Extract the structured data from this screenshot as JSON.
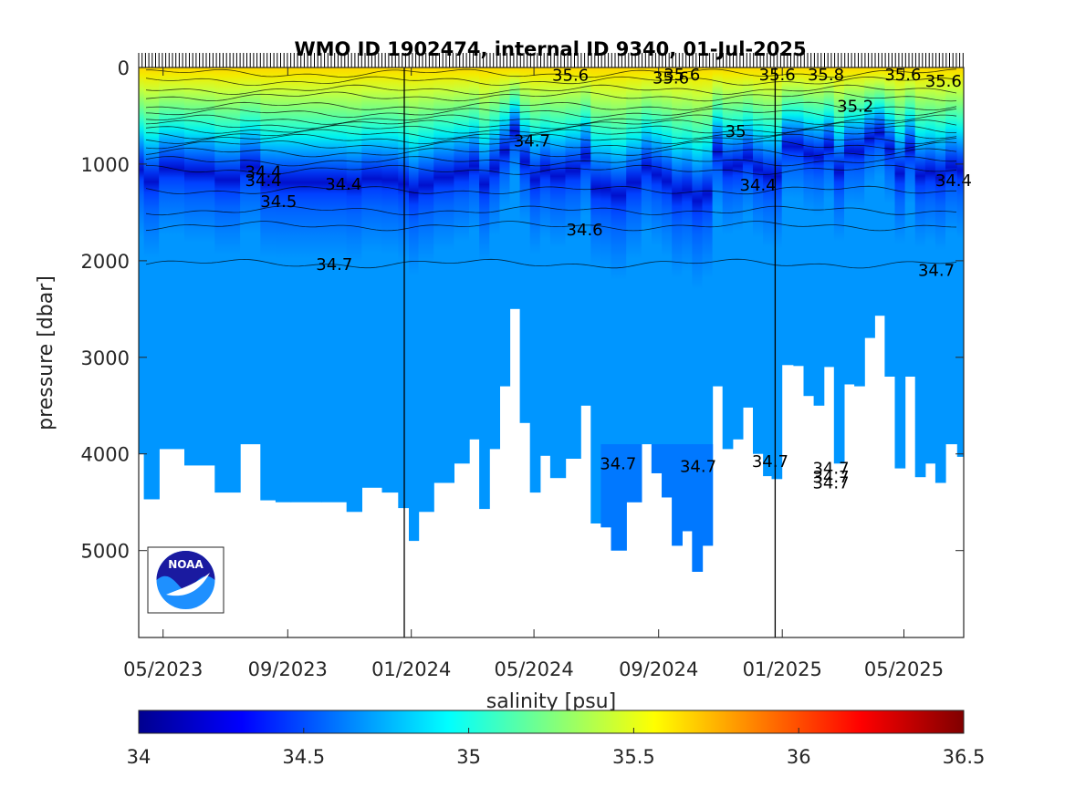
{
  "chart_data": {
    "type": "heatmap",
    "title": "WMO ID 1902474, internal ID 9340, 01-Jul-2025",
    "ylabel": "pressure [dbar]",
    "colorbar_label": "salinity [psu]",
    "x_range": [
      "2023-04-07",
      "2025-06-29"
    ],
    "y_range": [
      0,
      5900
    ],
    "y_reversed": true,
    "x_ticks": [
      {
        "date": "2023-05-01",
        "label": "05/2023"
      },
      {
        "date": "2023-09-01",
        "label": "09/2023"
      },
      {
        "date": "2024-01-01",
        "label": "01/2024"
      },
      {
        "date": "2024-05-01",
        "label": "05/2024"
      },
      {
        "date": "2024-09-01",
        "label": "09/2024"
      },
      {
        "date": "2025-01-01",
        "label": "01/2025"
      },
      {
        "date": "2025-05-01",
        "label": "05/2025"
      }
    ],
    "y_ticks": [
      {
        "value": 0,
        "label": "0"
      },
      {
        "value": 1000,
        "label": "1000"
      },
      {
        "value": 2000,
        "label": "2000"
      },
      {
        "value": 3000,
        "label": "3000"
      },
      {
        "value": 4000,
        "label": "4000"
      },
      {
        "value": 5000,
        "label": "5000"
      }
    ],
    "year_boundaries": [
      "2023-12-25",
      "2024-12-25"
    ],
    "colorbar": {
      "min": 34,
      "max": 36.5,
      "colormap": "jet",
      "ticks": [
        {
          "value": 34,
          "label": "34"
        },
        {
          "value": 34.5,
          "label": "34.5"
        },
        {
          "value": 35,
          "label": "35"
        },
        {
          "value": 35.5,
          "label": "35.5"
        },
        {
          "value": 36,
          "label": "36"
        },
        {
          "value": 36.5,
          "label": "36.5"
        }
      ]
    },
    "profile_depth": {
      "x": [
        "2023-04-07",
        "2023-04-17",
        "2023-05-07",
        "2023-06-06",
        "2023-07-06",
        "2023-07-26",
        "2023-08-15",
        "2023-08-25",
        "2023-09-14",
        "2023-10-24",
        "2023-11-03",
        "2023-11-23",
        "2023-12-13",
        "2023-12-25",
        "2024-01-03",
        "2024-01-13",
        "2024-02-02",
        "2024-02-22",
        "2024-03-03",
        "2024-03-13",
        "2024-03-23",
        "2024-04-02",
        "2024-04-12",
        "2024-04-22",
        "2024-05-02",
        "2024-05-12",
        "2024-05-22",
        "2024-06-11",
        "2024-06-21",
        "2024-07-01",
        "2024-07-11",
        "2024-07-21",
        "2024-08-10",
        "2024-08-20",
        "2024-08-30",
        "2024-09-09",
        "2024-09-19",
        "2024-09-29",
        "2024-10-09",
        "2024-10-19",
        "2024-10-29",
        "2024-11-08",
        "2024-11-18",
        "2024-11-28",
        "2024-12-08",
        "2024-12-18",
        "2024-12-25",
        "2025-01-07",
        "2025-01-17",
        "2025-01-27",
        "2025-02-06",
        "2025-02-16",
        "2025-02-26",
        "2025-03-08",
        "2025-03-18",
        "2025-03-28",
        "2025-04-07",
        "2025-04-17",
        "2025-04-27",
        "2025-05-07",
        "2025-05-17",
        "2025-05-27",
        "2025-06-06",
        "2025-06-16",
        "2025-06-29"
      ],
      "values": [
        4000,
        4470,
        3950,
        4120,
        4400,
        3900,
        4480,
        4500,
        4500,
        4500,
        4600,
        4350,
        4400,
        4560,
        4900,
        4600,
        4300,
        4100,
        3850,
        4570,
        3950,
        3300,
        2500,
        3680,
        4400,
        4020,
        4250,
        4050,
        3500,
        4720,
        4760,
        5000,
        4500,
        3900,
        4200,
        4450,
        4950,
        4800,
        5220,
        4950,
        3300,
        3950,
        3850,
        3520,
        4000,
        4230,
        4260,
        3080,
        3090,
        3400,
        3500,
        3100,
        4100,
        3280,
        3300,
        2800,
        2570,
        3200,
        4150,
        3200,
        4240,
        4100,
        4300,
        3900,
        4030
      ]
    },
    "contour_labels": [
      {
        "text": "35.6",
        "date": "2024-06-06",
        "p": 80
      },
      {
        "text": "35.6",
        "date": "2024-09-13",
        "p": 110
      },
      {
        "text": "35.6",
        "date": "2024-09-24",
        "p": 30
      },
      {
        "text": "35.6",
        "date": "2024-12-27",
        "p": 0
      },
      {
        "text": "35.8",
        "date": "2025-02-13",
        "p": 20
      },
      {
        "text": "35.6",
        "date": "2025-04-30",
        "p": 5
      },
      {
        "text": "35.6",
        "date": "2025-06-09",
        "p": 140
      },
      {
        "text": "35.2",
        "date": "2025-03-14",
        "p": 400
      },
      {
        "text": "35",
        "date": "2024-11-16",
        "p": 660
      },
      {
        "text": "34.7",
        "date": "2024-04-29",
        "p": 760
      },
      {
        "text": "34.4",
        "date": "2023-08-08",
        "p": 1080
      },
      {
        "text": "34.4",
        "date": "2023-08-08",
        "p": 1170
      },
      {
        "text": "34.4",
        "date": "2023-10-26",
        "p": 1210
      },
      {
        "text": "34.5",
        "date": "2023-08-23",
        "p": 1390
      },
      {
        "text": "34.4",
        "date": "2024-12-08",
        "p": 1220
      },
      {
        "text": "34.4",
        "date": "2025-06-19",
        "p": 1170
      },
      {
        "text": "34.6",
        "date": "2024-06-20",
        "p": 1680
      },
      {
        "text": "34.7",
        "date": "2023-10-17",
        "p": 2040
      },
      {
        "text": "34.7",
        "date": "2025-06-02",
        "p": 2100
      },
      {
        "text": "34.7",
        "date": "2024-07-23",
        "p": 4100
      },
      {
        "text": "34.7",
        "date": "2024-10-10",
        "p": 4130
      },
      {
        "text": "34.7",
        "date": "2024-12-20",
        "p": 4080
      },
      {
        "text": "34.7",
        "date": "2025-02-18",
        "p": 4150
      },
      {
        "text": "34.7",
        "date": "2025-02-18",
        "p": 4240
      },
      {
        "text": "34.7",
        "date": "2025-02-18",
        "p": 4300
      }
    ]
  },
  "logo": {
    "text": "NOAA"
  },
  "colors": {
    "frame": "#262626",
    "year_line": "#000000",
    "noaa_navy": "#1a1aa0",
    "noaa_sky": "#1e90ff"
  }
}
